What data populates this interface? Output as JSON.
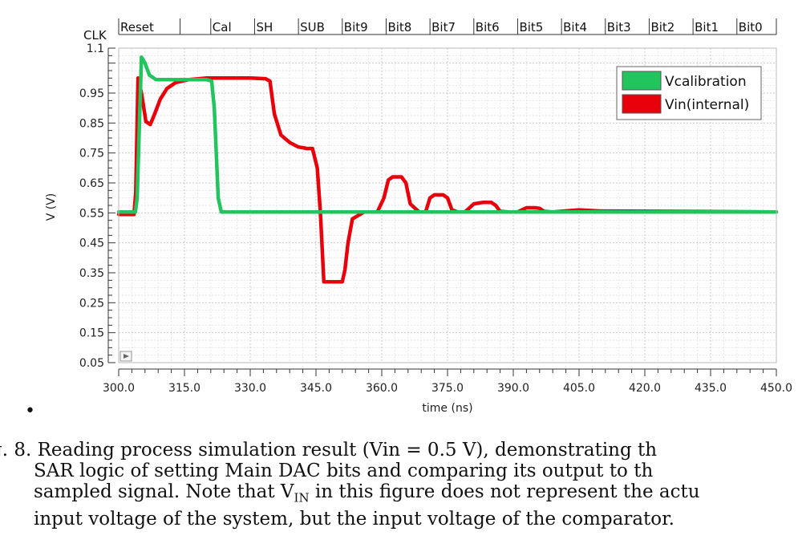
{
  "chart_data": {
    "type": "line",
    "xlabel": "time (ns)",
    "ylabel": "V (V)",
    "xlim": [
      300,
      450
    ],
    "ylim": [
      0.05,
      1.1
    ],
    "x_ticks": [
      "300.0",
      "315.0",
      "330.0",
      "345.0",
      "360.0",
      "375.0",
      "390.0",
      "405.0",
      "420.0",
      "435.0",
      "450.0"
    ],
    "y_ticks": [
      "1.1",
      "0.95",
      "0.85",
      "0.75",
      "0.65",
      "0.55",
      "0.45",
      "0.35",
      "0.25",
      "0.15",
      "0.05"
    ],
    "grid": true,
    "legend_position": "top-right",
    "clock_label": "CLK",
    "phases": [
      {
        "label": "Reset",
        "start": 300,
        "end": 314
      },
      {
        "label": "Cal",
        "start": 321,
        "end": 331
      },
      {
        "label": "SH",
        "start": 331,
        "end": 341
      },
      {
        "label": "SUB",
        "start": 341,
        "end": 351
      },
      {
        "label": "Bit9",
        "start": 351,
        "end": 361
      },
      {
        "label": "Bit8",
        "start": 361,
        "end": 371
      },
      {
        "label": "Bit7",
        "start": 371,
        "end": 381
      },
      {
        "label": "Bit6",
        "start": 381,
        "end": 391
      },
      {
        "label": "Bit5",
        "start": 391,
        "end": 401
      },
      {
        "label": "Bit4",
        "start": 401,
        "end": 411
      },
      {
        "label": "Bit3",
        "start": 411,
        "end": 421
      },
      {
        "label": "Bit2",
        "start": 421,
        "end": 431
      },
      {
        "label": "Bit1",
        "start": 431,
        "end": 441
      },
      {
        "label": "Bit0",
        "start": 441,
        "end": 450
      }
    ],
    "series": [
      {
        "name": "Vin(internal)",
        "color": "#e8000b",
        "x": [
          300,
          303.5,
          303.9,
          304.4,
          305.2,
          306.2,
          307.2,
          308.2,
          309.5,
          311,
          313,
          316,
          320,
          325,
          330,
          333.5,
          334.5,
          335.5,
          337,
          339,
          341,
          343,
          344.2,
          345.3,
          346,
          346.8,
          351,
          351.6,
          352.3,
          353.3,
          356,
          359,
          360.5,
          361.5,
          362.5,
          364.5,
          365.5,
          366.5,
          368.5,
          370,
          371,
          372,
          374,
          375,
          376,
          377.3,
          379,
          381,
          383,
          385,
          386,
          387,
          389,
          391,
          393,
          395,
          396,
          397,
          399,
          405,
          410,
          450
        ],
        "values": [
          0.545,
          0.545,
          0.62,
          1.0,
          0.95,
          0.855,
          0.845,
          0.88,
          0.93,
          0.965,
          0.985,
          0.995,
          1.0,
          1.0,
          1.0,
          0.998,
          0.99,
          0.88,
          0.81,
          0.785,
          0.77,
          0.765,
          0.765,
          0.7,
          0.55,
          0.32,
          0.32,
          0.36,
          0.45,
          0.53,
          0.553,
          0.553,
          0.6,
          0.66,
          0.67,
          0.67,
          0.65,
          0.58,
          0.553,
          0.553,
          0.6,
          0.61,
          0.61,
          0.6,
          0.56,
          0.553,
          0.553,
          0.58,
          0.585,
          0.585,
          0.575,
          0.555,
          0.553,
          0.553,
          0.567,
          0.567,
          0.565,
          0.555,
          0.553,
          0.56,
          0.556,
          0.553
        ]
      },
      {
        "name": "Vcalibration",
        "color": "#22c45e",
        "x": [
          300,
          303.8,
          304.2,
          305.2,
          306,
          307,
          308.5,
          310,
          313,
          320,
          321.2,
          321.8,
          322.7,
          323.4,
          330,
          450
        ],
        "values": [
          0.553,
          0.553,
          0.6,
          1.07,
          1.05,
          1.01,
          0.995,
          0.995,
          0.995,
          0.995,
          0.99,
          0.9,
          0.6,
          0.553,
          0.553,
          0.553
        ]
      }
    ]
  },
  "caption": {
    "line1": "g. 8.  Reading process simulation result (Vin = 0.5 V), demonstrating th",
    "line2": "SAR logic of setting Main DAC bits and comparing its output to th",
    "line3_pre": "sampled signal. Note that V",
    "line3_sub": "IN",
    "line3_post": " in this figure does not represent the actu",
    "line4": "input voltage of the system, but the input voltage of the comparator."
  },
  "bullet": "•"
}
